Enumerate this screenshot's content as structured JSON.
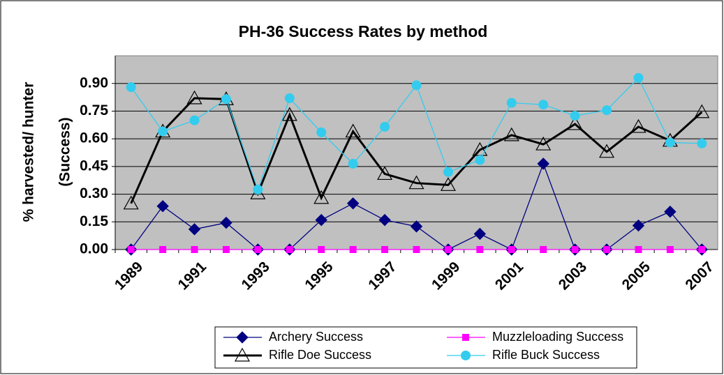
{
  "chart_data": {
    "type": "line",
    "title": "PH-36 Success Rates by method",
    "y_label": [
      "% harvested/ hunter",
      "(Success)"
    ],
    "categories": [
      "1989",
      null,
      "1991",
      null,
      "1993",
      null,
      "1995",
      null,
      "1997",
      null,
      "1999",
      null,
      "2001",
      null,
      "2003",
      null,
      "2005",
      null,
      "2007"
    ],
    "series": [
      {
        "name": "Archery Success",
        "color": "#000080",
        "marker": "diamond",
        "values": [
          0,
          0.235,
          0.11,
          0.145,
          0,
          0,
          0.16,
          0.25,
          0.16,
          0.125,
          0,
          0.085,
          0,
          0.465,
          0,
          0,
          0.13,
          0.205,
          0
        ]
      },
      {
        "name": "Muzzleloading Success",
        "color": "#ff00ff",
        "marker": "square",
        "values": [
          0,
          0,
          0,
          0,
          0,
          0,
          0,
          0,
          0,
          0,
          0,
          0,
          0,
          0,
          0,
          0,
          0,
          0,
          0
        ]
      },
      {
        "name": "Rifle Doe Success",
        "color": "#000000",
        "marker": "triangle",
        "values": [
          0.25,
          0.64,
          0.82,
          0.815,
          0.305,
          0.73,
          0.28,
          0.64,
          0.41,
          0.36,
          0.35,
          0.54,
          0.62,
          0.57,
          0.68,
          0.53,
          0.665,
          0.59,
          0.745
        ]
      },
      {
        "name": "Rifle Buck Success",
        "color": "#33ccee",
        "marker": "circle",
        "values": [
          0.88,
          0.64,
          0.7,
          0.815,
          0.325,
          0.82,
          0.635,
          0.465,
          0.665,
          0.89,
          0.42,
          0.485,
          0.795,
          0.785,
          0.725,
          0.755,
          0.93,
          0.58,
          0.575
        ]
      }
    ],
    "ylim": [
      0,
      1.05
    ],
    "yticks": [
      {
        "value": 0,
        "label": "0.00"
      },
      {
        "value": 0.15,
        "label": "0.15"
      },
      {
        "value": 0.3,
        "label": "0.30"
      },
      {
        "value": 0.45,
        "label": "0.45"
      },
      {
        "value": 0.6,
        "label": "0.60"
      },
      {
        "value": 0.75,
        "label": "0.75"
      },
      {
        "value": 0.9,
        "label": "0.90"
      }
    ],
    "grid": true,
    "legend": "bottom",
    "plot_background": "#c0c0c0"
  }
}
